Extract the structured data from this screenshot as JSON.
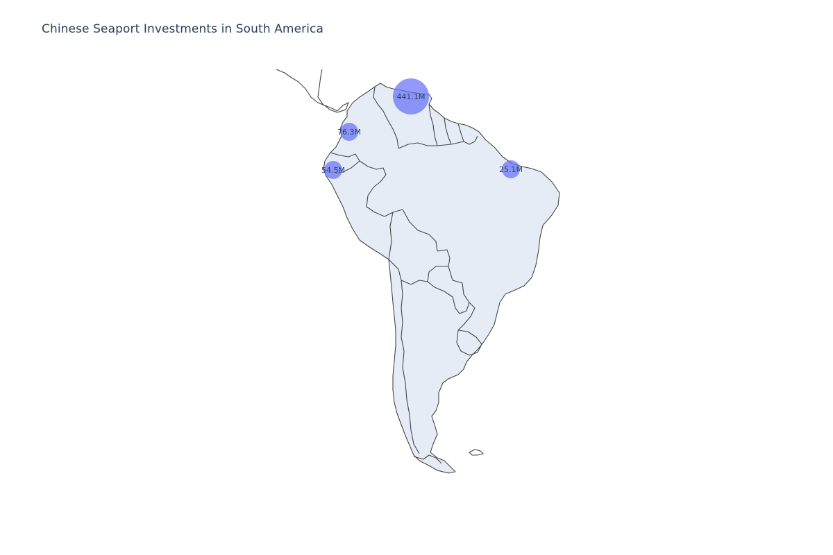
{
  "title": "Chinese Seaport Investments in South America",
  "colors": {
    "bubble": "#636efa",
    "land": "#e5ecf6",
    "border": "#444444",
    "text": "#2a3f5f"
  },
  "chart_data": {
    "type": "scattergeo",
    "title": "Chinese Seaport Investments in South America",
    "bubbles": [
      {
        "label": "441.1M",
        "value_musd": 441.1
      },
      {
        "label": "76.3M",
        "value_musd": 76.3
      },
      {
        "label": "54.5M",
        "value_musd": 54.5
      },
      {
        "label": "25.1M",
        "value_musd": 25.1
      }
    ]
  }
}
